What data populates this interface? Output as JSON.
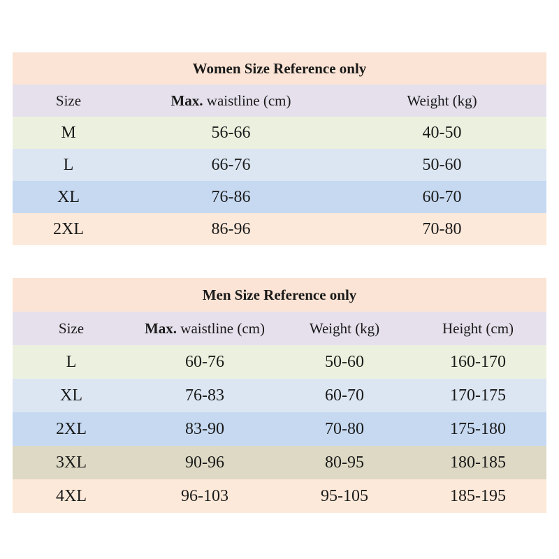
{
  "colors": {
    "title_bg": "#fbe4d5",
    "header_bg": "#e6e0ec",
    "green_bg": "#ebf1de",
    "lightblue_bg": "#dce6f2",
    "blue_bg": "#c6d9f1",
    "peach_bg": "#fde9d9",
    "tan_bg": "#ddd9c4"
  },
  "women": {
    "title": "Women Size Reference only",
    "headers": {
      "size": "Size",
      "waist_bold": "Max.",
      "waist_rest": " waistline (cm)",
      "weight": "Weight (kg)"
    },
    "rows": [
      {
        "size": "M",
        "waist": "56-66",
        "weight": "40-50",
        "bg": "#ebf1de"
      },
      {
        "size": "L",
        "waist": "66-76",
        "weight": "50-60",
        "bg": "#dce6f2"
      },
      {
        "size": "XL",
        "waist": "76-86",
        "weight": "60-70",
        "bg": "#c6d9f1"
      },
      {
        "size": "2XL",
        "waist": "86-96",
        "weight": "70-80",
        "bg": "#fde9d9"
      }
    ]
  },
  "men": {
    "title": "Men Size Reference only",
    "headers": {
      "size": "Size",
      "waist_bold": "Max.",
      "waist_rest": " waistline (cm)",
      "weight": "Weight (kg)",
      "height": "Height (cm)"
    },
    "rows": [
      {
        "size": "L",
        "waist": "60-76",
        "weight": "50-60",
        "height": "160-170",
        "bg": "#ebf1de"
      },
      {
        "size": "XL",
        "waist": "76-83",
        "weight": "60-70",
        "height": "170-175",
        "bg": "#dce6f2"
      },
      {
        "size": "2XL",
        "waist": "83-90",
        "weight": "70-80",
        "height": "175-180",
        "bg": "#c6d9f1"
      },
      {
        "size": "3XL",
        "waist": "90-96",
        "weight": "80-95",
        "height": "180-185",
        "bg": "#ddd9c4"
      },
      {
        "size": "4XL",
        "waist": "96-103",
        "weight": "95-105",
        "height": "185-195",
        "bg": "#fde9d9"
      }
    ]
  }
}
